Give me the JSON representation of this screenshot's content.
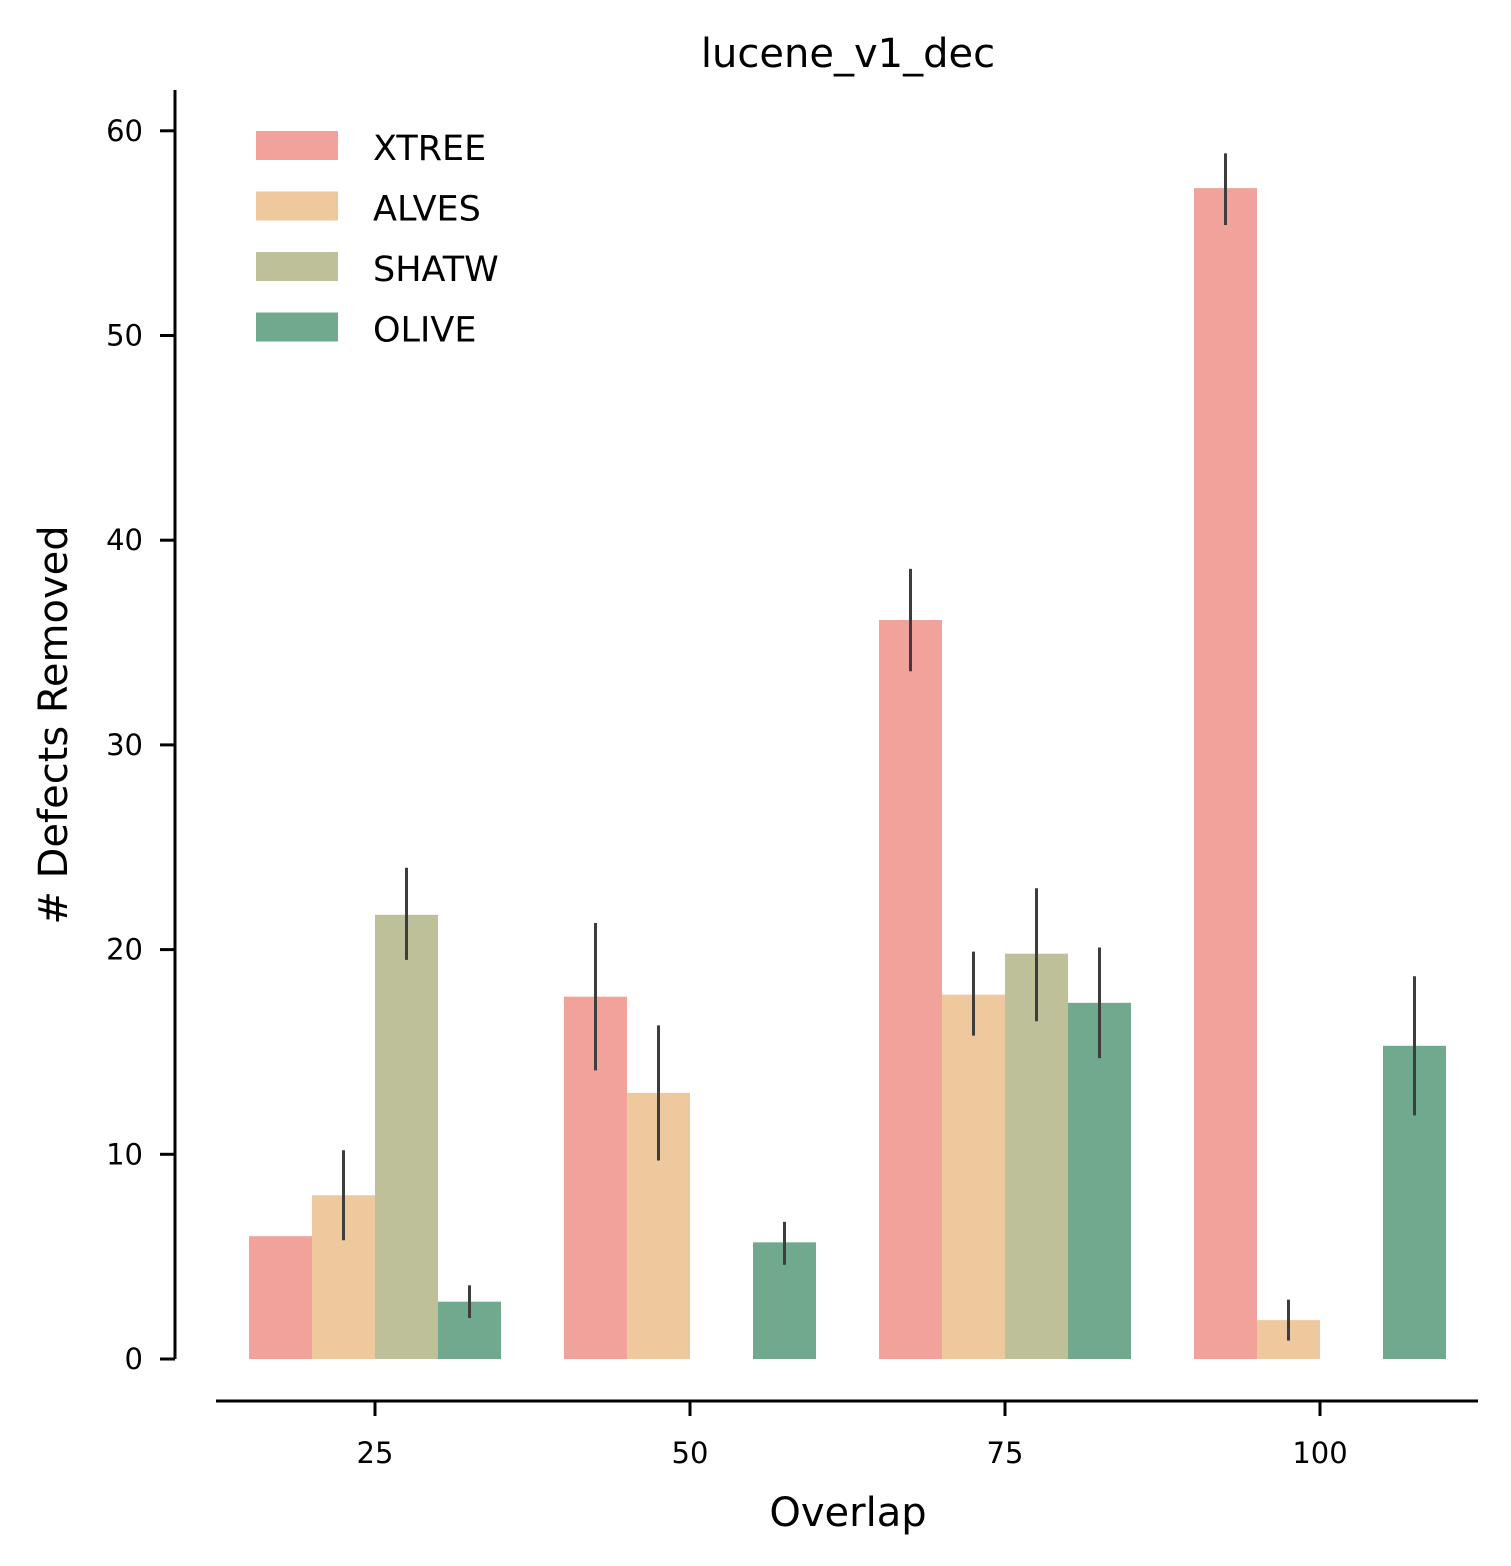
{
  "chart_data": {
    "type": "bar",
    "title": "lucene_v1_dec",
    "xlabel": "Overlap",
    "ylabel": "# Defects Removed",
    "categories": [
      "25",
      "50",
      "75",
      "100"
    ],
    "ylim": [
      0,
      62
    ],
    "yticks": [
      0,
      10,
      20,
      30,
      40,
      50,
      60
    ],
    "legend_position": "top-left",
    "grid": false,
    "series": [
      {
        "name": "XTREE",
        "color": "#f1a29b",
        "values": [
          6.0,
          17.7,
          36.1,
          57.2
        ],
        "ci_low": [
          6.0,
          14.1,
          33.6,
          55.4
        ],
        "ci_high": [
          6.0,
          21.3,
          38.6,
          58.9
        ]
      },
      {
        "name": "ALVES",
        "color": "#efc99e",
        "values": [
          8.0,
          13.0,
          17.8,
          1.9
        ],
        "ci_low": [
          5.8,
          9.7,
          15.8,
          0.9
        ],
        "ci_high": [
          10.2,
          16.3,
          19.9,
          2.9
        ]
      },
      {
        "name": "SHATW",
        "color": "#bec099",
        "values": [
          21.7,
          0,
          19.8,
          0
        ],
        "ci_low": [
          19.5,
          null,
          16.5,
          null
        ],
        "ci_high": [
          24.0,
          null,
          23.0,
          null
        ]
      },
      {
        "name": "OLIVE",
        "color": "#71a98f",
        "values": [
          2.8,
          5.7,
          17.4,
          15.3
        ],
        "ci_low": [
          2.0,
          4.6,
          14.7,
          11.9
        ],
        "ci_high": [
          3.6,
          6.7,
          20.1,
          18.7
        ]
      }
    ]
  }
}
